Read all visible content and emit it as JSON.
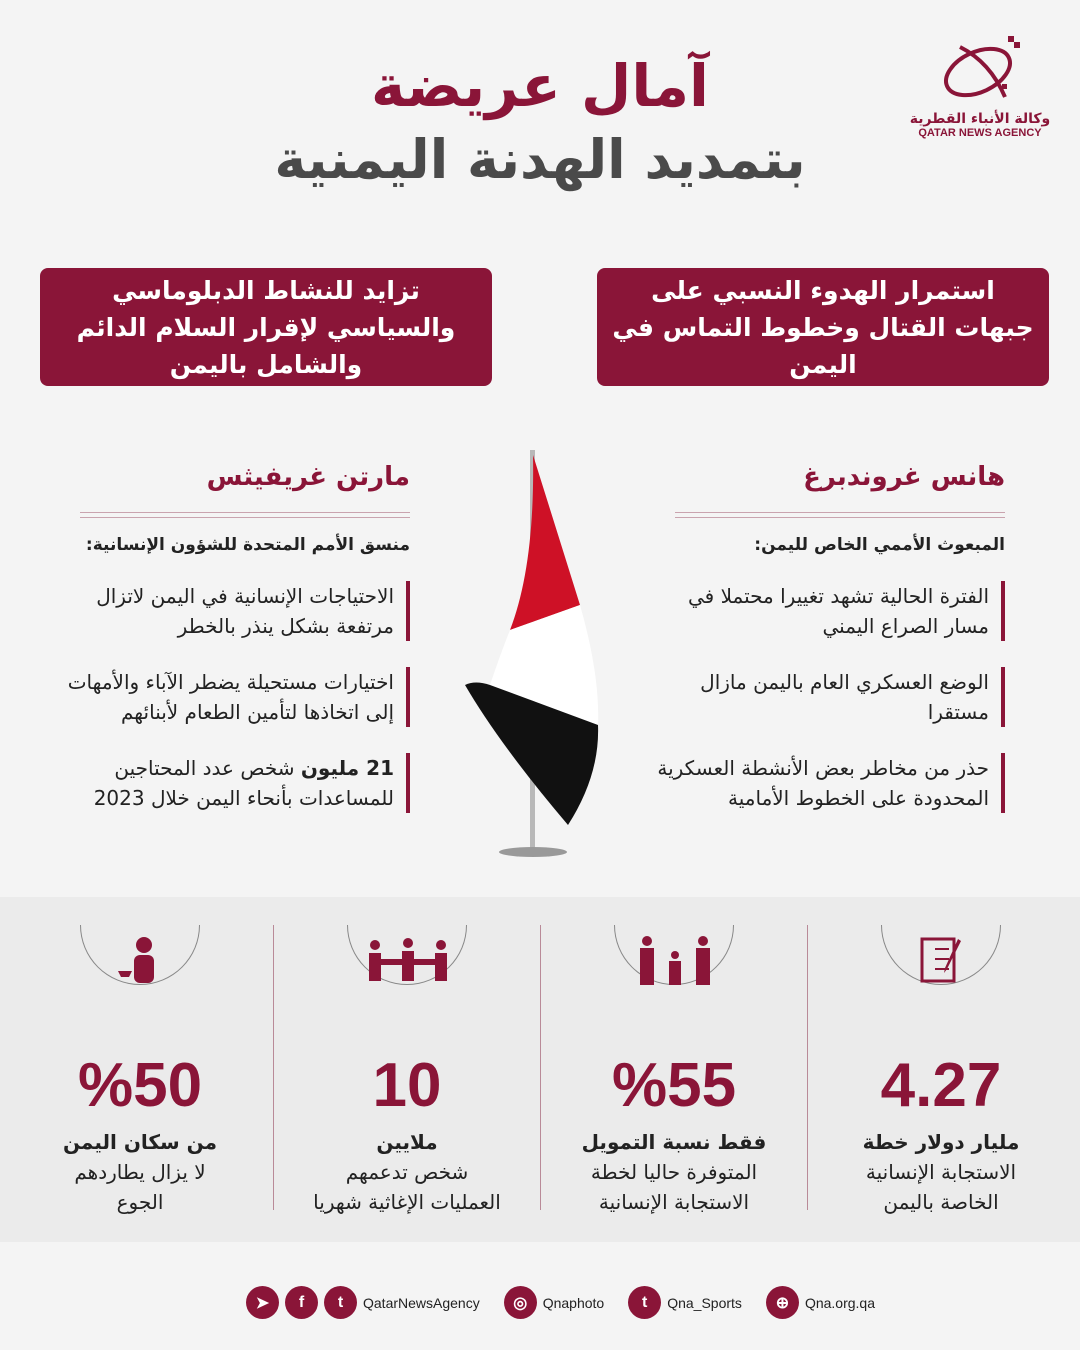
{
  "title": {
    "line1": "آمال عريضة",
    "line2": "بتمديد الهدنة اليمنية"
  },
  "logo": {
    "arabic": "وكالة الأنباء القطرية",
    "english": "QATAR NEWS AGENCY"
  },
  "boxes": [
    "تزايد للنشاط الدبلوماسي والسياسي لإقرار السلام الدائم والشامل باليمن",
    "استمرار الهدوء النسبي على جبهات القتال وخطوط التماس في اليمن"
  ],
  "left": {
    "name": "مارتن غريفيثس",
    "role": "منسق الأمم المتحدة للشؤون الإنسانية:",
    "points": [
      "الاحتياجات الإنسانية في اليمن لاتزال مرتفعة بشكل ينذر بالخطر",
      "اختيارات مستحيلة يضطر الآباء والأمهات إلى اتخاذها لتأمين الطعام لأبنائهم"
    ],
    "last_bold": "21 مليون",
    "last_rest": " شخص عدد المحتاجين للمساعدات بأنحاء اليمن خلال 2023"
  },
  "right": {
    "name": "هانس غروندبرغ",
    "role": "المبعوث الأممي الخاص لليمن:",
    "points": [
      "الفترة الحالية تشهد تغييرا محتملا في مسار الصراع اليمني",
      "الوضع العسكري العام باليمن مازال مستقرا",
      "حذر من مخاطر بعض الأنشطة العسكرية المحدودة على الخطوط الأمامية"
    ]
  },
  "flag": {
    "colors": [
      "#ce1126",
      "#ffffff",
      "#000000"
    ]
  },
  "stats": [
    {
      "icon": "hungry-person-icon",
      "num": "%50",
      "bold": "من سكان اليمن",
      "l2": "لا يزال يطاردهم",
      "l3": "الجوع"
    },
    {
      "icon": "people-group-icon",
      "num": "10",
      "bold": "ملايين",
      "l2": "شخص تدعمهم",
      "l3": "العمليات الإغاثية شهريا"
    },
    {
      "icon": "family-icon",
      "num": "%55",
      "bold": "فقط نسبة التمويل",
      "l2": "المتوفرة حاليا لخطة",
      "l3": "الاستجابة الإنسانية"
    },
    {
      "icon": "checklist-icon",
      "num": "4.27",
      "bold": "مليار دولار خطة",
      "l2": "الاستجابة الإنسانية",
      "l3": "الخاصة باليمن"
    }
  ],
  "footer": {
    "social": "QatarNewsAgency",
    "instagram": "Qnaphoto",
    "twitter": "Qna_Sports",
    "web": "Qna.org.qa"
  },
  "colors": {
    "accent": "#8a1538",
    "band": "#ebebeb",
    "background": "#f4f4f4"
  }
}
